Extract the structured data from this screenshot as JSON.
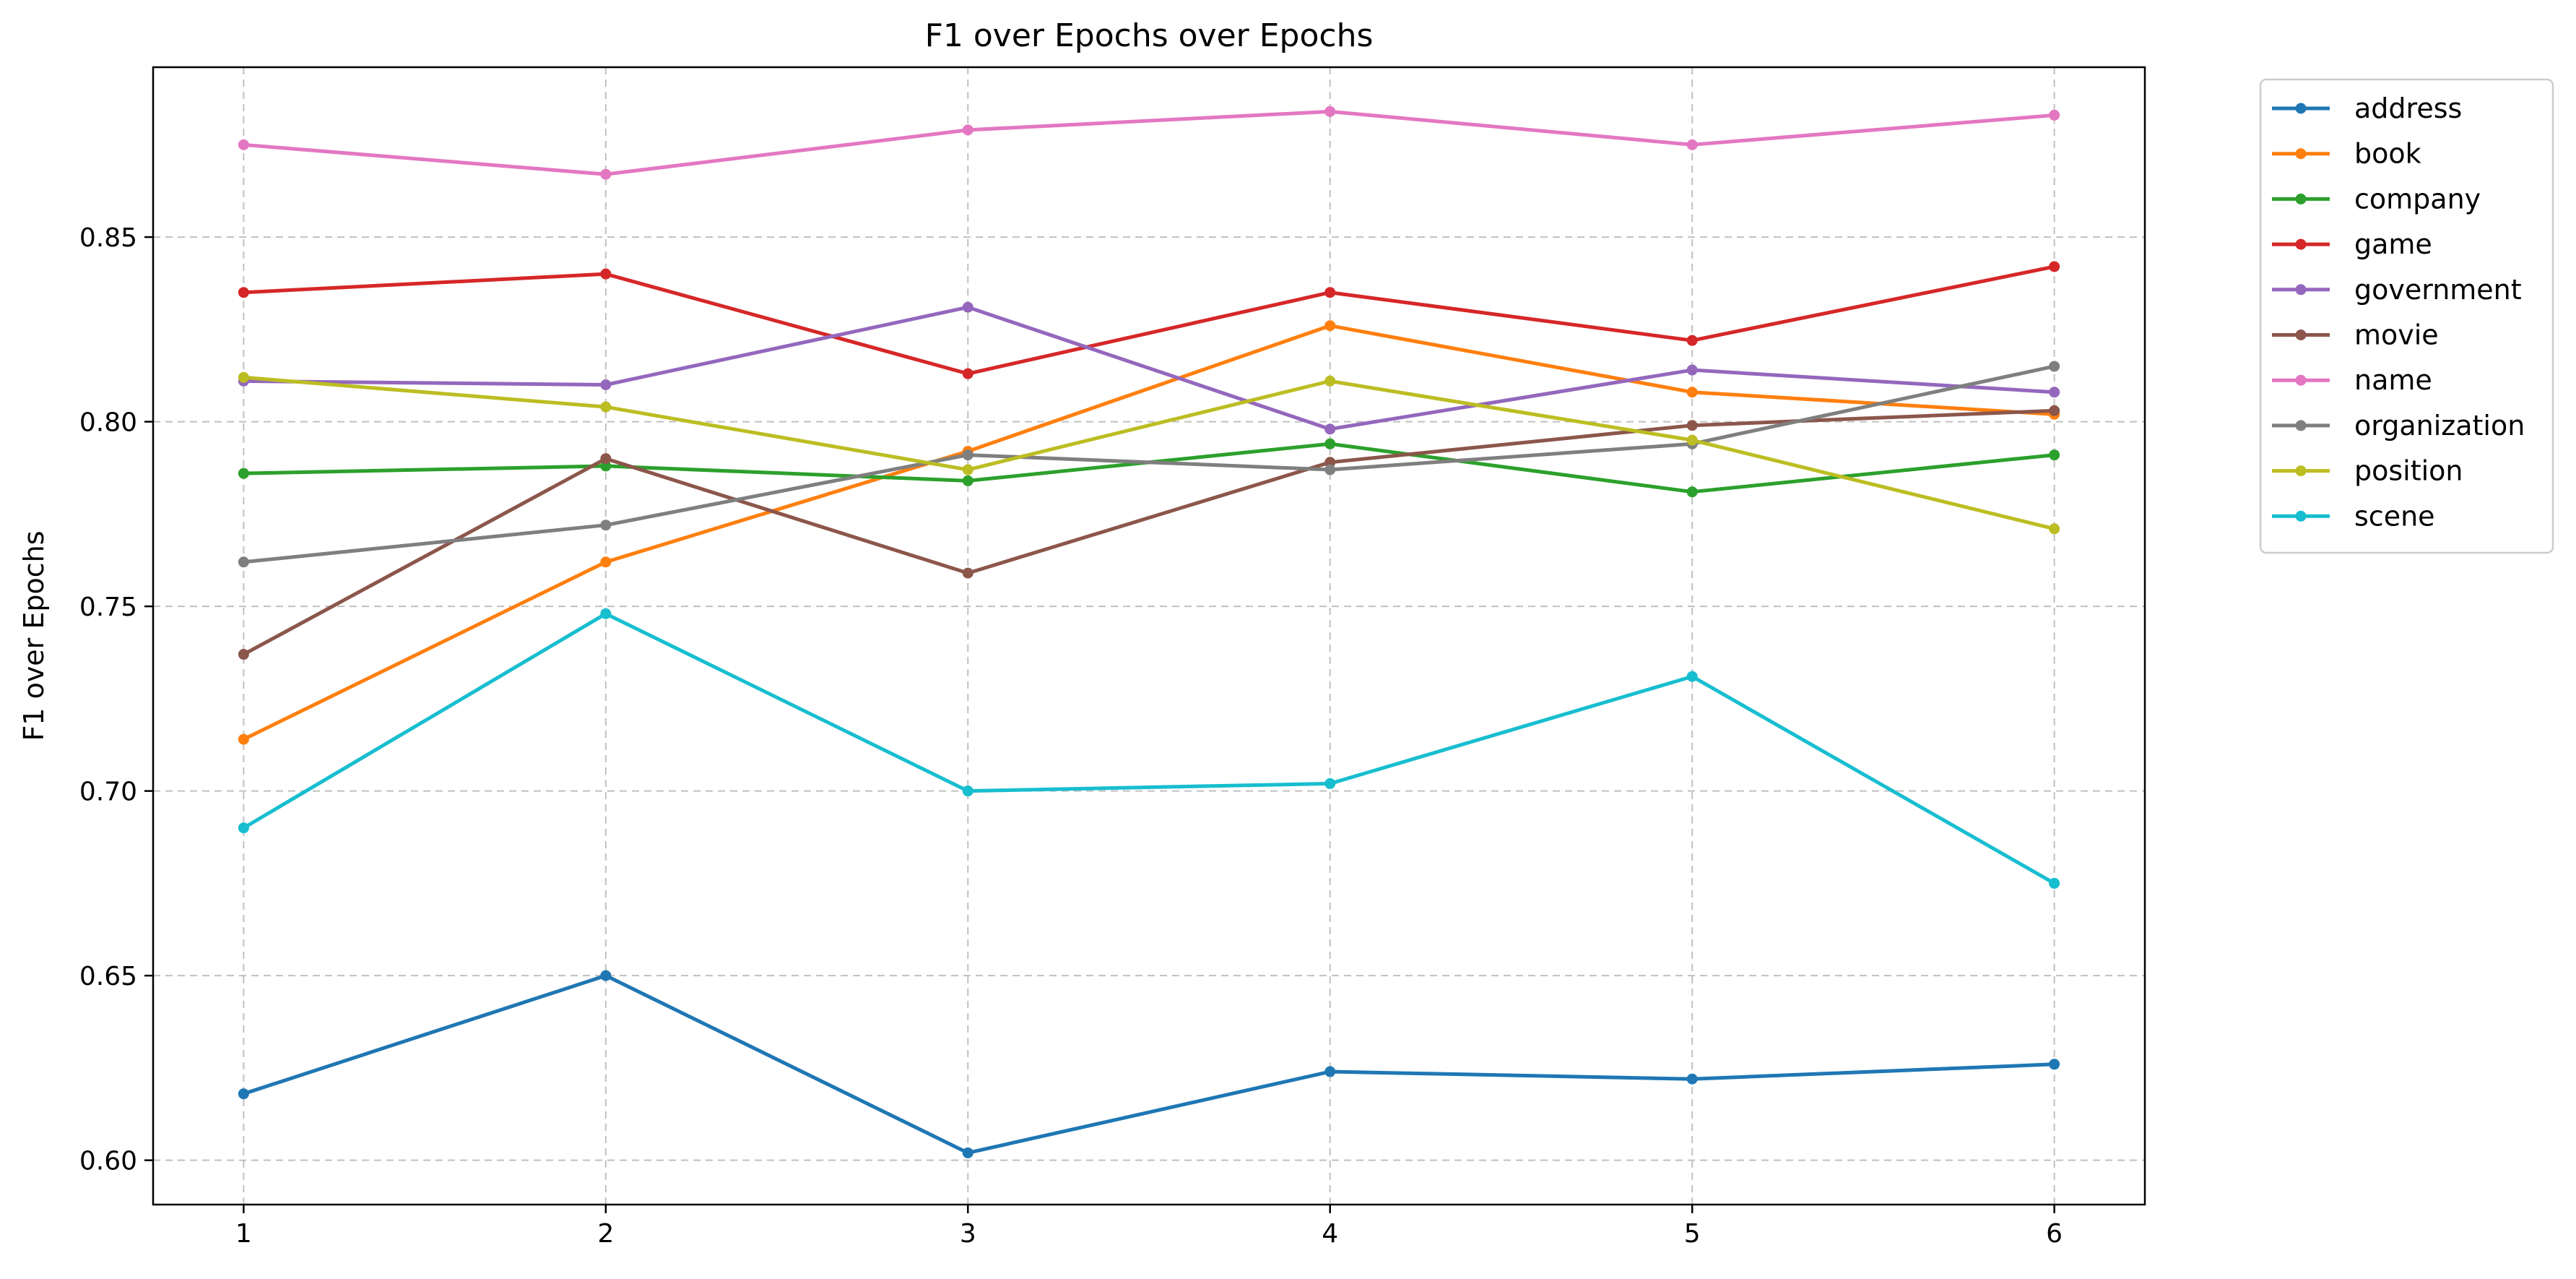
{
  "chart_data": {
    "type": "line",
    "title": "F1 over Epochs over Epochs",
    "xlabel": "",
    "ylabel": "F1 over Epochs",
    "x": [
      1,
      2,
      3,
      4,
      5,
      6
    ],
    "xlim": [
      0.75,
      6.25
    ],
    "ylim": [
      0.588,
      0.896
    ],
    "yticks": [
      0.6,
      0.65,
      0.7,
      0.75,
      0.8,
      0.85
    ],
    "ytick_labels": [
      "0.60",
      "0.65",
      "0.70",
      "0.75",
      "0.80",
      "0.85"
    ],
    "xtick_labels": [
      "1",
      "2",
      "3",
      "4",
      "5",
      "6"
    ],
    "grid": true,
    "legend_position": "outside-top-right",
    "series": [
      {
        "name": "address",
        "color": "#1f77b4",
        "values": [
          0.618,
          0.65,
          0.602,
          0.624,
          0.622,
          0.626
        ]
      },
      {
        "name": "book",
        "color": "#ff7f0e",
        "values": [
          0.714,
          0.762,
          0.792,
          0.826,
          0.808,
          0.802
        ]
      },
      {
        "name": "company",
        "color": "#2ca02c",
        "values": [
          0.786,
          0.788,
          0.784,
          0.794,
          0.781,
          0.791
        ]
      },
      {
        "name": "game",
        "color": "#d62728",
        "values": [
          0.835,
          0.84,
          0.813,
          0.835,
          0.822,
          0.842
        ]
      },
      {
        "name": "government",
        "color": "#9467bd",
        "values": [
          0.811,
          0.81,
          0.831,
          0.798,
          0.814,
          0.808
        ]
      },
      {
        "name": "movie",
        "color": "#8c564b",
        "values": [
          0.737,
          0.79,
          0.759,
          0.789,
          0.799,
          0.803
        ]
      },
      {
        "name": "name",
        "color": "#e377c2",
        "values": [
          0.875,
          0.867,
          0.879,
          0.884,
          0.875,
          0.883
        ]
      },
      {
        "name": "organization",
        "color": "#7f7f7f",
        "values": [
          0.762,
          0.772,
          0.791,
          0.787,
          0.794,
          0.815
        ]
      },
      {
        "name": "position",
        "color": "#bcbd22",
        "values": [
          0.812,
          0.804,
          0.787,
          0.811,
          0.795,
          0.771
        ]
      },
      {
        "name": "scene",
        "color": "#17becf",
        "values": [
          0.69,
          0.748,
          0.7,
          0.702,
          0.731,
          0.675
        ]
      }
    ]
  }
}
